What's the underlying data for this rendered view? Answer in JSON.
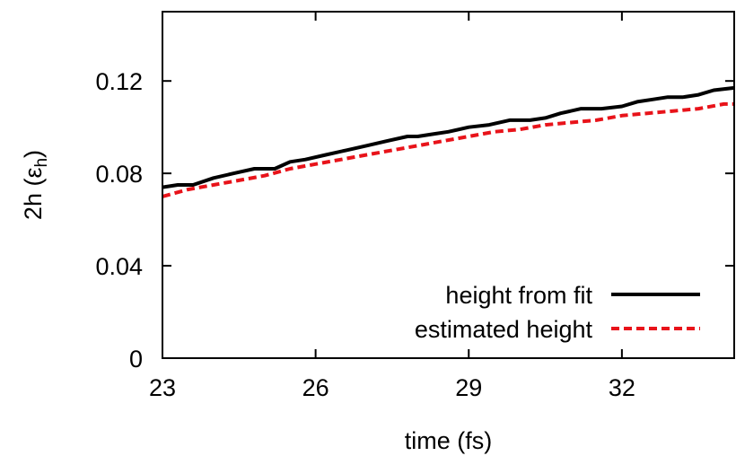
{
  "chart_data": {
    "type": "line",
    "xlabel": "time (fs)",
    "ylabel_main": "2h (ε",
    "ylabel_sub": "h",
    "ylabel_close": ")",
    "xlim": [
      23,
      34.2
    ],
    "ylim": [
      0,
      0.15
    ],
    "xticks": [
      23,
      26,
      29,
      32
    ],
    "yticks": [
      0,
      0.04,
      0.08,
      0.12
    ],
    "xtick_labels": [
      "23",
      "26",
      "29",
      "32"
    ],
    "ytick_labels": [
      "0",
      "0.04",
      "0.08",
      "0.12"
    ],
    "legend_position": "bottom-right",
    "grid": false,
    "series": [
      {
        "name": "height from fit",
        "color": "#000000",
        "dash": "solid",
        "x": [
          23.0,
          23.3,
          23.6,
          24.0,
          24.4,
          24.8,
          25.2,
          25.5,
          25.8,
          26.2,
          26.6,
          27.0,
          27.4,
          27.8,
          28.0,
          28.3,
          28.6,
          29.0,
          29.4,
          29.8,
          30.2,
          30.5,
          30.8,
          31.2,
          31.6,
          32.0,
          32.3,
          32.6,
          32.9,
          33.2,
          33.5,
          33.8,
          34.2
        ],
        "y": [
          0.074,
          0.075,
          0.075,
          0.078,
          0.08,
          0.082,
          0.082,
          0.085,
          0.086,
          0.088,
          0.09,
          0.092,
          0.094,
          0.096,
          0.096,
          0.097,
          0.098,
          0.1,
          0.101,
          0.103,
          0.103,
          0.104,
          0.106,
          0.108,
          0.108,
          0.109,
          0.111,
          0.112,
          0.113,
          0.113,
          0.114,
          0.116,
          0.117
        ]
      },
      {
        "name": "estimated height",
        "color": "#e8131a",
        "dash": "dashed",
        "x": [
          23.0,
          23.5,
          24.0,
          24.5,
          25.0,
          25.5,
          26.0,
          26.5,
          27.0,
          27.5,
          28.0,
          28.5,
          29.0,
          29.5,
          30.0,
          30.5,
          31.0,
          31.5,
          32.0,
          32.5,
          33.0,
          33.5,
          34.0,
          34.2
        ],
        "y": [
          0.07,
          0.073,
          0.075,
          0.077,
          0.079,
          0.082,
          0.084,
          0.086,
          0.088,
          0.09,
          0.092,
          0.094,
          0.096,
          0.098,
          0.099,
          0.101,
          0.102,
          0.103,
          0.105,
          0.106,
          0.107,
          0.108,
          0.11,
          0.11
        ]
      }
    ]
  }
}
